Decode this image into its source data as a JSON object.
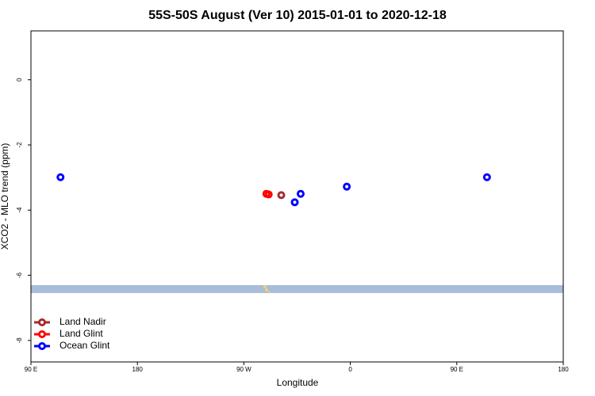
{
  "chart_data": {
    "type": "scatter",
    "title": "55S-50S August (Ver 10)   2015-01-01 to 2020-12-18",
    "x_label": "Longitude",
    "y_label": "XCO2 - MLO trend (ppm)",
    "xlim": [
      90,
      540
    ],
    "xticks": [
      {
        "value": 90,
        "label": "90 E"
      },
      180,
      {
        "value": 270,
        "label": "90 W"
      },
      {
        "value": 360,
        "label": "0"
      },
      {
        "value": 450,
        "label": "90 E"
      },
      {
        "value": 540,
        "label": "180"
      }
    ],
    "ylim": [
      -8.66,
      1.5
    ],
    "yticks": [
      0,
      -2,
      -4,
      -6,
      -8
    ],
    "legend_position": "bottom-left",
    "series": [
      {
        "name": "Land Nadir",
        "color": "#a52a2a",
        "x": [
          301.6
        ],
        "values": [
          -3.54
        ]
      },
      {
        "name": "Land Glint",
        "color": "#ff0000",
        "x": [
          289,
          291
        ],
        "values": [
          -3.5,
          -3.52
        ]
      },
      {
        "name": "Ocean Glint",
        "color": "#0000ff",
        "x": [
          115,
          313,
          318,
          357,
          475.5
        ],
        "values": [
          -2.99,
          -3.76,
          -3.5,
          -3.28,
          -2.99
        ]
      }
    ]
  }
}
